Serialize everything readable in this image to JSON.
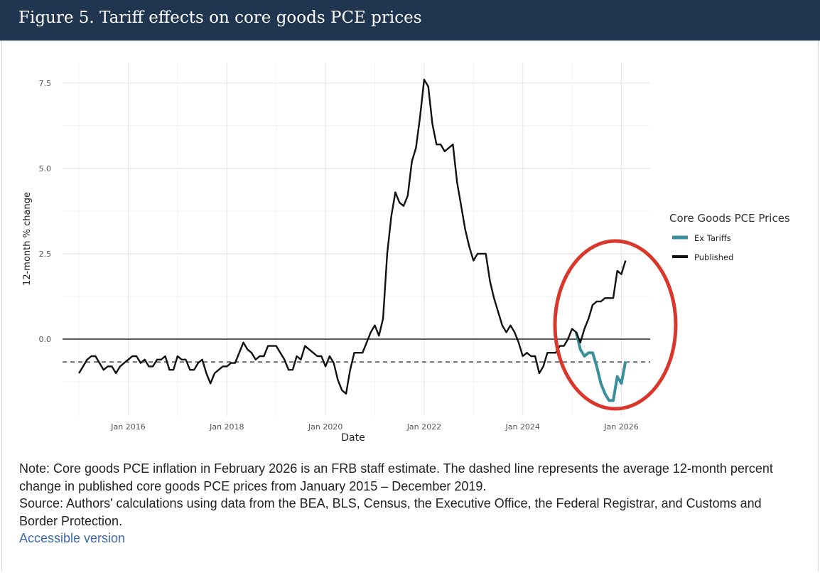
{
  "header": {
    "title": "Figure 5. Tariff effects on core goods PCE prices"
  },
  "notes": {
    "note": "Note: Core goods PCE inflation in February 2026 is an FRB staff estimate. The dashed line represents the average 12-month percent change in published core goods PCE prices from January 2015 – December 2019.",
    "source": "Source: Authors' calculations using data from the BEA, BLS, Census, the Executive Office, the Federal Registrar, and Customs and Border Protection.",
    "accessible_link": "Accessible version"
  },
  "colors": {
    "published": "#111111",
    "ex_tariffs": "#3a8f9c",
    "highlight": "#d9372b",
    "header_bg": "#1f3550"
  },
  "chart_data": {
    "type": "line",
    "title": "Figure 5. Tariff effects on core goods PCE prices",
    "xlabel": "Date",
    "ylabel": "12-month % change",
    "x_start": "2015-01",
    "frequency": "monthly",
    "xlim": [
      "2014-09",
      "2026-08"
    ],
    "ylim": [
      -2.25,
      8.1
    ],
    "yticks": [
      0.0,
      2.5,
      5.0,
      7.5
    ],
    "ytick_labels": [
      "0.0",
      "2.5",
      "5.0",
      "7.5"
    ],
    "xticks": [
      "2016-01",
      "2018-01",
      "2020-01",
      "2022-01",
      "2024-01",
      "2026-01"
    ],
    "xtick_labels": [
      "Jan 2016",
      "Jan 2018",
      "Jan 2020",
      "Jan 2022",
      "Jan 2024",
      "Jan 2026"
    ],
    "grid": true,
    "reference_lines": {
      "zero": 0.0,
      "dashed_average_2015_2019": -0.67
    },
    "legend": {
      "title": "Core Goods PCE Prices",
      "position": "right",
      "entries": [
        "Ex Tariffs",
        "Published"
      ]
    },
    "annotation": "red ellipse highlighting 2025–2026",
    "series": [
      {
        "name": "Published",
        "start": "2015-01",
        "values": [
          -1.0,
          -0.8,
          -0.6,
          -0.5,
          -0.5,
          -0.7,
          -0.9,
          -0.8,
          -0.8,
          -1.0,
          -0.8,
          -0.7,
          -0.6,
          -0.5,
          -0.5,
          -0.7,
          -0.6,
          -0.8,
          -0.8,
          -0.6,
          -0.6,
          -0.5,
          -0.9,
          -0.9,
          -0.5,
          -0.6,
          -0.6,
          -0.9,
          -0.9,
          -0.7,
          -0.6,
          -1.0,
          -1.3,
          -1.0,
          -0.9,
          -0.8,
          -0.8,
          -0.7,
          -0.7,
          -0.4,
          -0.1,
          -0.3,
          -0.4,
          -0.6,
          -0.5,
          -0.5,
          -0.2,
          -0.2,
          -0.2,
          -0.4,
          -0.6,
          -0.9,
          -0.9,
          -0.5,
          -0.6,
          -0.2,
          -0.3,
          -0.4,
          -0.5,
          -0.5,
          -0.8,
          -0.5,
          -0.7,
          -1.2,
          -1.5,
          -1.6,
          -0.9,
          -0.4,
          -0.4,
          -0.4,
          -0.1,
          0.2,
          0.4,
          0.1,
          0.6,
          2.5,
          3.6,
          4.3,
          4.0,
          3.9,
          4.2,
          5.2,
          5.6,
          6.5,
          7.6,
          7.4,
          6.3,
          5.7,
          5.7,
          5.5,
          5.6,
          5.7,
          4.6,
          3.9,
          3.2,
          2.7,
          2.3,
          2.5,
          2.5,
          2.5,
          1.7,
          1.2,
          0.8,
          0.4,
          0.2,
          0.4,
          0.2,
          -0.1,
          -0.5,
          -0.4,
          -0.5,
          -0.5,
          -1.0,
          -0.8,
          -0.4,
          -0.4,
          -0.4,
          -0.2,
          -0.2,
          0.0,
          0.3,
          0.2,
          -0.1,
          0.3,
          0.6,
          1.0,
          1.1,
          1.1,
          1.2,
          1.2,
          1.2,
          2.0,
          1.9,
          2.3
        ]
      },
      {
        "name": "Ex Tariffs",
        "start": "2025-02",
        "values": [
          0.2,
          -0.3,
          -0.5,
          -0.4,
          -0.4,
          -0.8,
          -1.3,
          -1.6,
          -1.8,
          -1.8,
          -1.1,
          -1.3,
          -0.65
        ]
      }
    ]
  }
}
